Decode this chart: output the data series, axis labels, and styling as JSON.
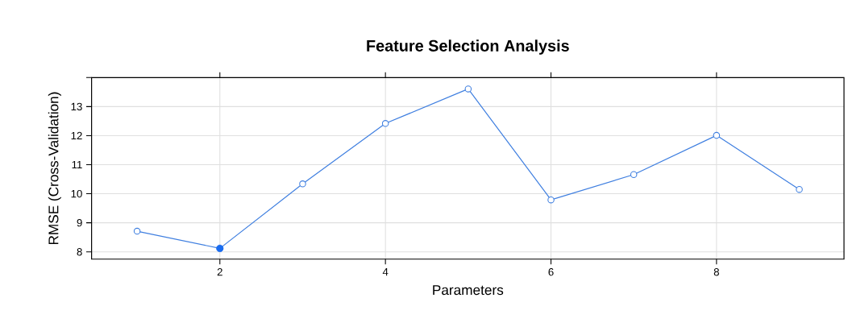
{
  "chart_data": {
    "type": "line",
    "title": "Feature Selection Analysis",
    "xlabel": "Parameters",
    "ylabel": "RMSE (Cross-Validation)",
    "x": [
      1,
      2,
      3,
      4,
      5,
      6,
      7,
      8,
      9
    ],
    "series": [
      {
        "color": "#3f7fe0",
        "values": [
          8.71,
          8.12,
          10.34,
          12.42,
          13.61,
          9.79,
          10.66,
          12.01,
          10.15
        ],
        "marker": "circle"
      },
      {
        "type": "scatter",
        "color": "#1a6cf0",
        "x": [
          2
        ],
        "values": [
          8.12
        ],
        "marker": "circle"
      }
    ],
    "xlim": [
      0.45,
      9.54
    ],
    "ylim": [
      7.75,
      14
    ],
    "xticks": [
      2,
      4,
      6,
      8
    ],
    "yticks": [
      8,
      9,
      10,
      11,
      12,
      13,
      {
        "value": 14,
        "label": null
      }
    ],
    "grid": true
  }
}
